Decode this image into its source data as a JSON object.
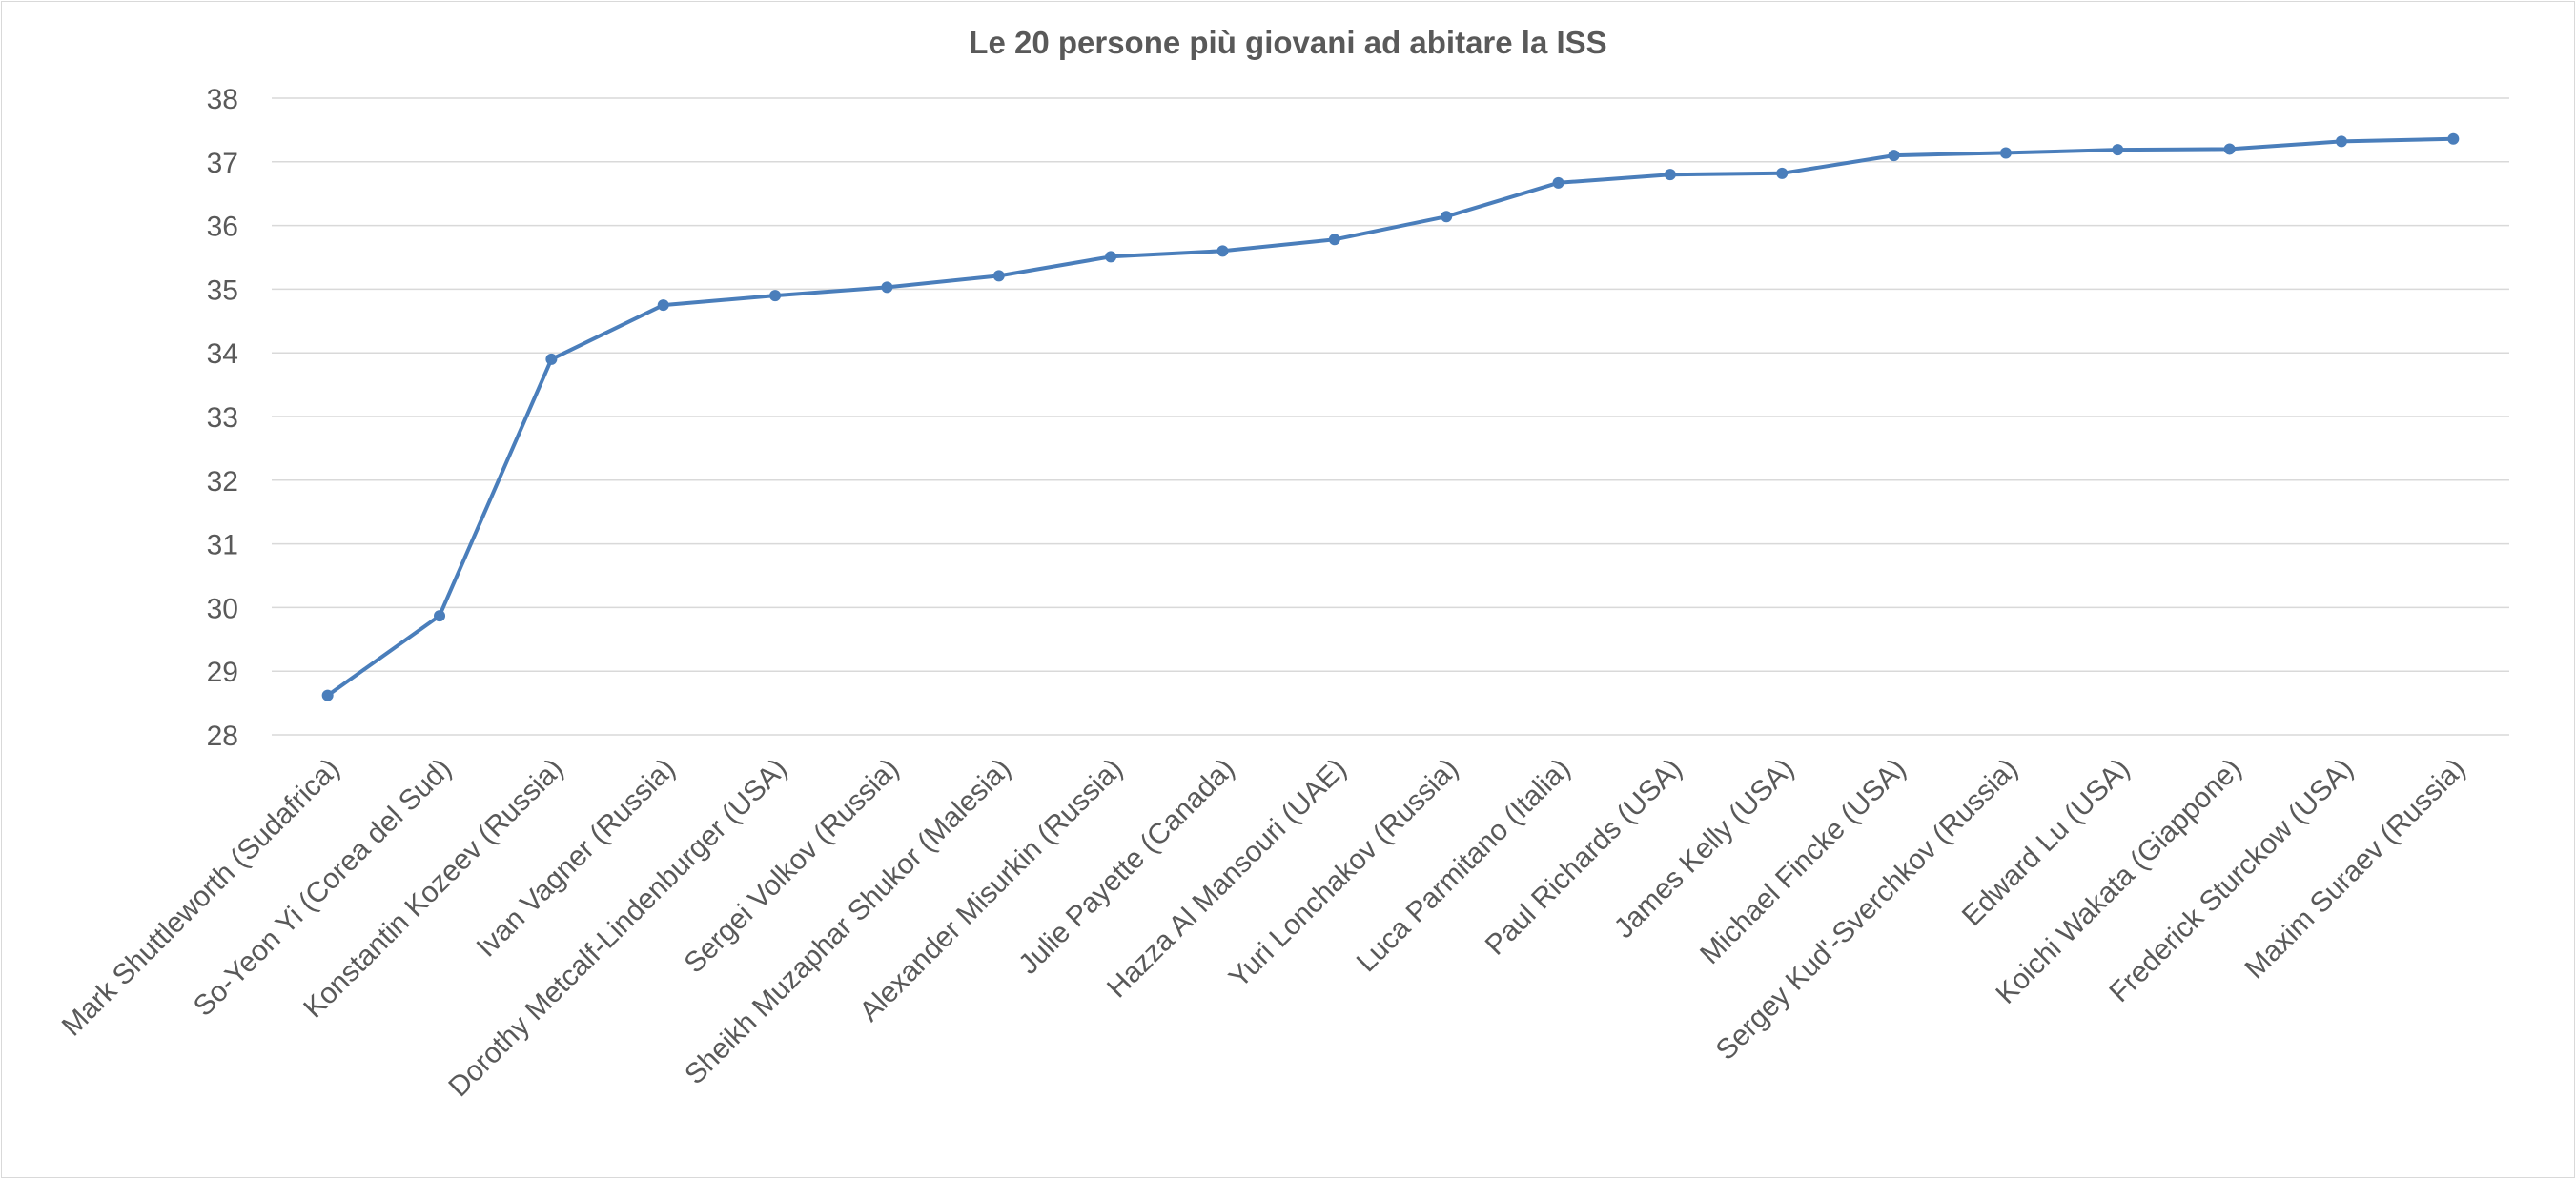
{
  "chart_data": {
    "type": "line",
    "title": "Le 20 persone più giovani ad abitare la ISS",
    "xlabel": "",
    "ylabel": "",
    "ylim": [
      28,
      38
    ],
    "yticks": [
      "28",
      "29",
      "30",
      "31",
      "32",
      "33",
      "34",
      "35",
      "36",
      "37",
      "38"
    ],
    "grid": true,
    "legend": "none",
    "color": "#4a7ebb",
    "categories": [
      "Mark Shuttleworth (Sudafrica)",
      "So-Yeon Yi (Corea del Sud)",
      "Konstantin Kozeev (Russia)",
      "Ivan Vagner (Russia)",
      "Dorothy Metcalf-Lindenburger (USA)",
      "Sergei Volkov (Russia)",
      "Sheikh Muzaphar Shukor (Malesia)",
      "Alexander Misurkin (Russia)",
      "Julie Payette (Canada)",
      "Hazza Al Mansouri (UAE)",
      "Yuri Lonchakov (Russia)",
      "Luca Parmitano (Italia)",
      "Paul Richards (USA)",
      "James Kelly (USA)",
      "Michael Fincke (USA)",
      "Sergey Kud'-Sverchkov (Russia)",
      "Edward Lu (USA)",
      "Koichi Wakata (Giappone)",
      "Frederick Sturckow (USA)",
      "Maxim Suraev (Russia)"
    ],
    "values": [
      28.62,
      29.87,
      33.9,
      34.75,
      34.9,
      35.03,
      35.21,
      35.51,
      35.6,
      35.78,
      36.14,
      36.67,
      36.8,
      36.82,
      37.1,
      37.14,
      37.19,
      37.2,
      37.32,
      37.36
    ]
  }
}
